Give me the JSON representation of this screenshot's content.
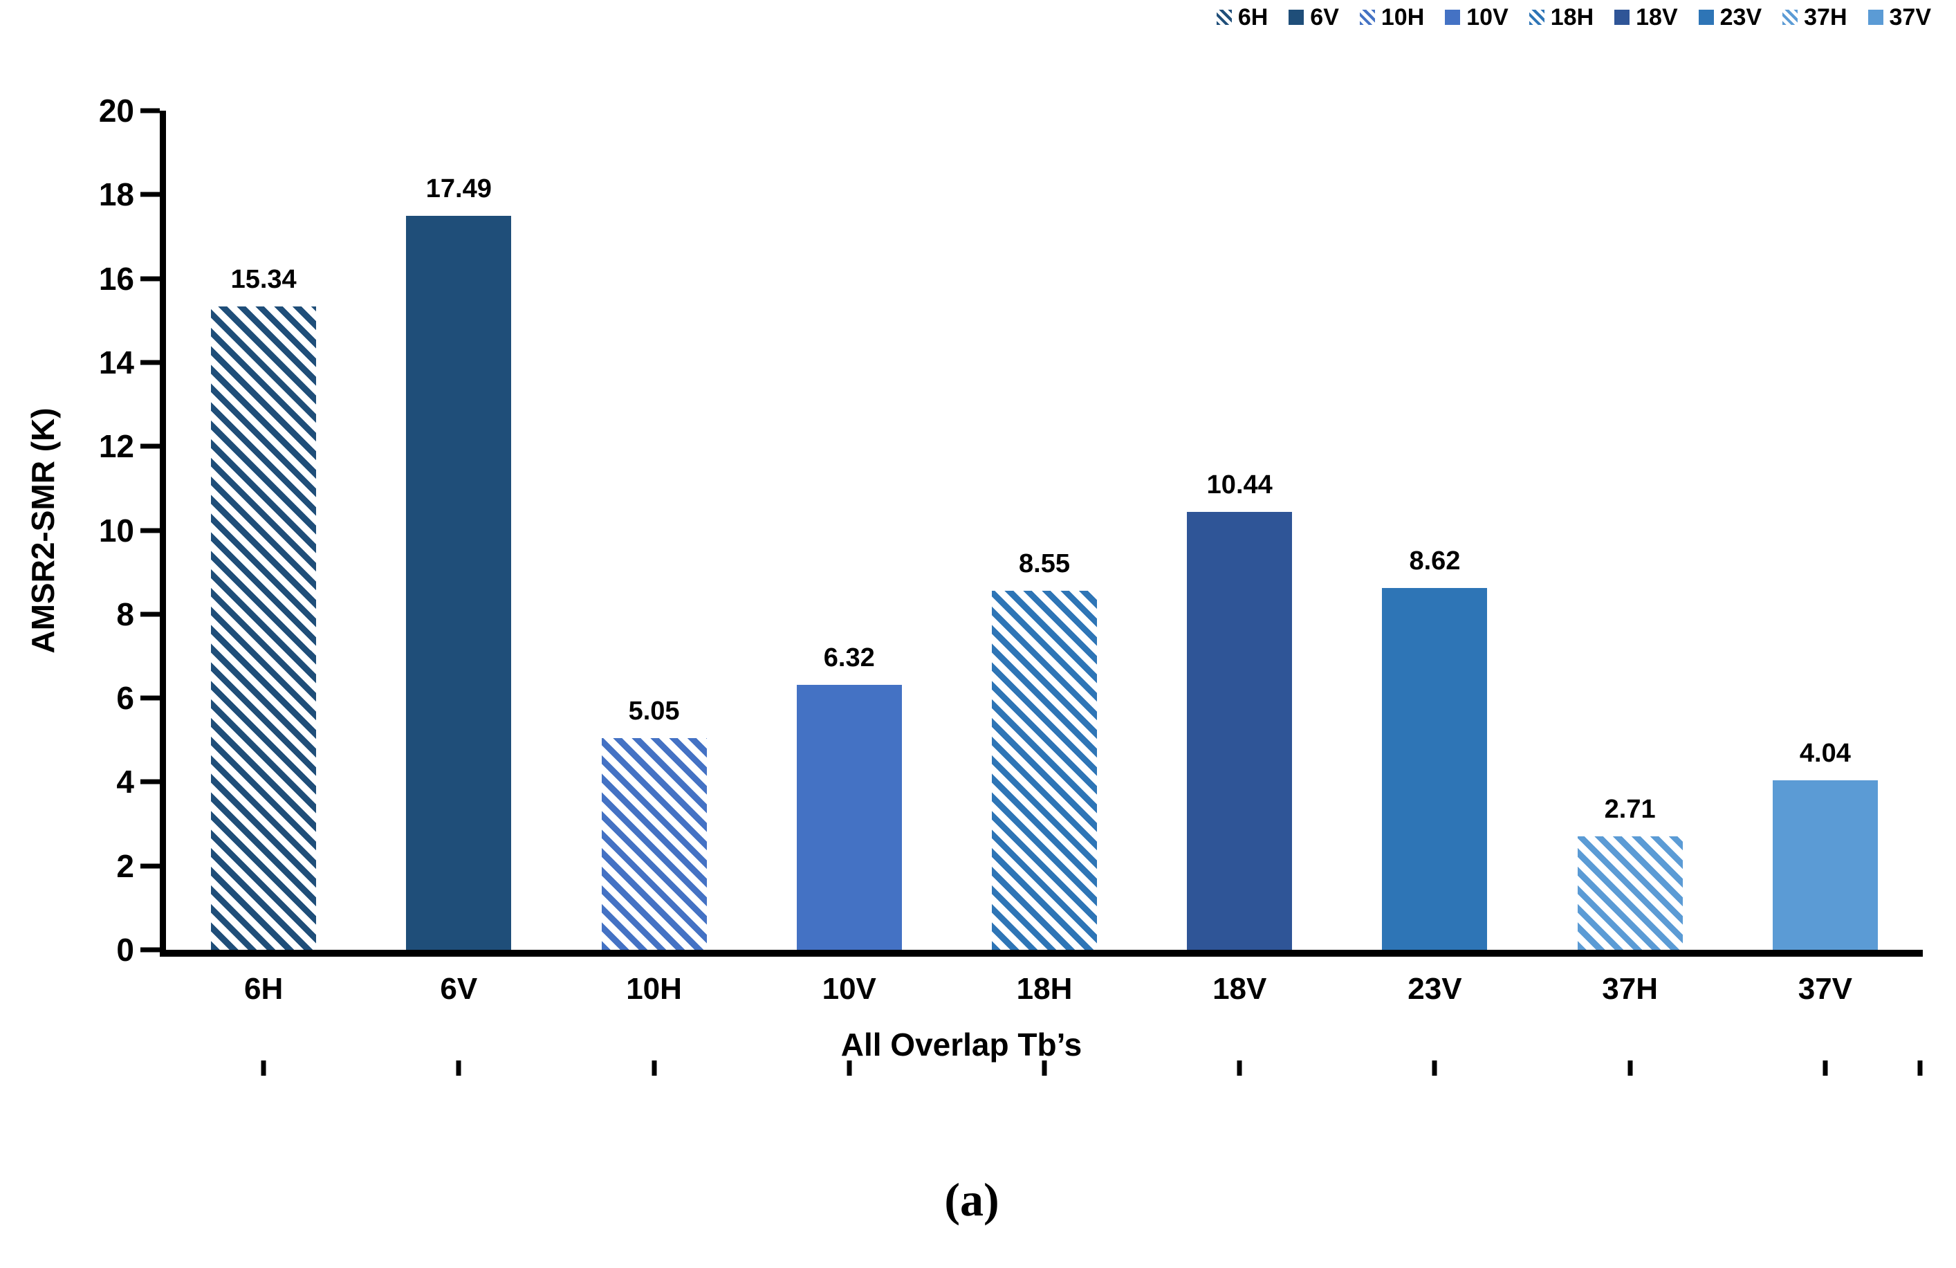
{
  "figure": {
    "caption": "(a)"
  },
  "chart_data": {
    "type": "bar",
    "title": "",
    "xlabel": "All Overlap Tb’s",
    "ylabel": "AMSR2-SMR (K)",
    "ylim": [
      0,
      20
    ],
    "ytick_step": 2,
    "grid": false,
    "legend_position": "top-right",
    "categories": [
      "6H",
      "6V",
      "10H",
      "10V",
      "18H",
      "18V",
      "23V",
      "37H",
      "37V"
    ],
    "values": [
      15.34,
      17.49,
      5.05,
      6.32,
      8.55,
      10.44,
      8.62,
      2.71,
      4.04
    ],
    "value_labels": [
      "15.34",
      "17.49",
      "5.05",
      "6.32",
      "8.55",
      "10.44",
      "8.62",
      "2.71",
      "4.04"
    ],
    "series_styles": [
      {
        "name": "6H",
        "color": "#1F4E79",
        "pattern": "diagonal-hatch"
      },
      {
        "name": "6V",
        "color": "#1F4E79",
        "pattern": "solid"
      },
      {
        "name": "10H",
        "color": "#4472C4",
        "pattern": "diagonal-hatch"
      },
      {
        "name": "10V",
        "color": "#4472C4",
        "pattern": "solid"
      },
      {
        "name": "18H",
        "color": "#2E75B6",
        "pattern": "diagonal-hatch"
      },
      {
        "name": "18V",
        "color": "#2F5597",
        "pattern": "solid"
      },
      {
        "name": "23V",
        "color": "#2E75B6",
        "pattern": "solid"
      },
      {
        "name": "37H",
        "color": "#5B9BD5",
        "pattern": "diagonal-hatch"
      },
      {
        "name": "37V",
        "color": "#5B9BD5",
        "pattern": "solid"
      }
    ],
    "legend": [
      "6H",
      "6V",
      "10H",
      "10V",
      "18H",
      "18V",
      "23V",
      "37H",
      "37V"
    ]
  },
  "colors": {
    "axis": "#000000",
    "text": "#000000",
    "background": "#FFFFFF"
  }
}
